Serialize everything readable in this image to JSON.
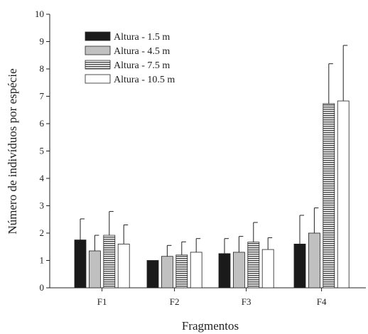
{
  "chart_data": {
    "type": "bar",
    "xlabel": "Fragmentos",
    "ylabel": "Número de indivíduos por espécie",
    "ylim": [
      0,
      10
    ],
    "yticks": [
      0,
      1,
      2,
      3,
      4,
      5,
      6,
      7,
      8,
      9,
      10
    ],
    "categories": [
      "F1",
      "F2",
      "F3",
      "F4"
    ],
    "legend_position": "top-left",
    "series": [
      {
        "name": "Altura - 1.5 m",
        "pattern": "solid",
        "color": "#1a1a1a",
        "values": [
          1.75,
          1.0,
          1.25,
          1.6
        ],
        "errors": [
          0.77,
          0.0,
          0.55,
          1.05
        ]
      },
      {
        "name": "Altura - 4.5 m",
        "pattern": "solid",
        "color": "#c0c0c0",
        "values": [
          1.35,
          1.15,
          1.3,
          2.0
        ],
        "errors": [
          0.57,
          0.4,
          0.58,
          0.92
        ]
      },
      {
        "name": "Altura - 7.5 m",
        "pattern": "horizontal-stripes",
        "color": "#555555",
        "values": [
          1.92,
          1.2,
          1.67,
          6.73
        ],
        "errors": [
          0.87,
          0.48,
          0.72,
          1.46
        ]
      },
      {
        "name": "Altura - 10.5 m",
        "pattern": "none",
        "color": "#ffffff",
        "values": [
          1.6,
          1.3,
          1.4,
          6.83
        ],
        "errors": [
          0.7,
          0.5,
          0.43,
          2.03
        ]
      }
    ]
  }
}
